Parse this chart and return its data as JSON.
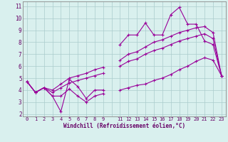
{
  "xlabel": "Windchill (Refroidissement éolien,°C)",
  "x": [
    0,
    1,
    2,
    3,
    4,
    5,
    6,
    7,
    8,
    9,
    11,
    12,
    13,
    14,
    15,
    16,
    17,
    18,
    19,
    20,
    21,
    22,
    23
  ],
  "line_max": [
    4.7,
    3.8,
    4.2,
    3.5,
    2.2,
    4.9,
    4.3,
    3.3,
    4.0,
    4.0,
    7.8,
    8.6,
    8.6,
    9.6,
    8.6,
    8.6,
    10.3,
    10.9,
    9.5,
    9.5,
    8.1,
    7.8,
    5.2
  ],
  "line_upper": [
    4.7,
    3.8,
    4.2,
    4.0,
    4.5,
    5.0,
    5.2,
    5.4,
    5.7,
    5.9,
    6.5,
    7.0,
    7.2,
    7.6,
    8.0,
    8.2,
    8.5,
    8.8,
    9.0,
    9.2,
    9.3,
    8.8,
    5.2
  ],
  "line_lower": [
    4.7,
    3.8,
    4.2,
    3.8,
    4.2,
    4.6,
    4.8,
    5.0,
    5.2,
    5.4,
    6.0,
    6.4,
    6.6,
    7.0,
    7.3,
    7.5,
    7.8,
    8.1,
    8.3,
    8.5,
    8.7,
    8.3,
    5.2
  ],
  "line_min": [
    4.7,
    3.8,
    4.2,
    3.5,
    3.5,
    4.1,
    3.5,
    3.0,
    3.5,
    3.7,
    4.0,
    4.2,
    4.4,
    4.5,
    4.8,
    5.0,
    5.3,
    5.7,
    6.0,
    6.4,
    6.7,
    6.5,
    5.2
  ],
  "line_color": "#990099",
  "bg_color": "#d9f0ee",
  "grid_color": "#aacccc",
  "yticks": [
    2,
    3,
    4,
    5,
    6,
    7,
    8,
    9,
    10,
    11
  ],
  "xtick_labels": [
    "0",
    "1",
    "2",
    "3",
    "4",
    "5",
    "6",
    "7",
    "8",
    "9",
    "",
    "11",
    "12",
    "13",
    "14",
    "15",
    "16",
    "17",
    "18",
    "19",
    "20",
    "21",
    "22",
    "23"
  ]
}
